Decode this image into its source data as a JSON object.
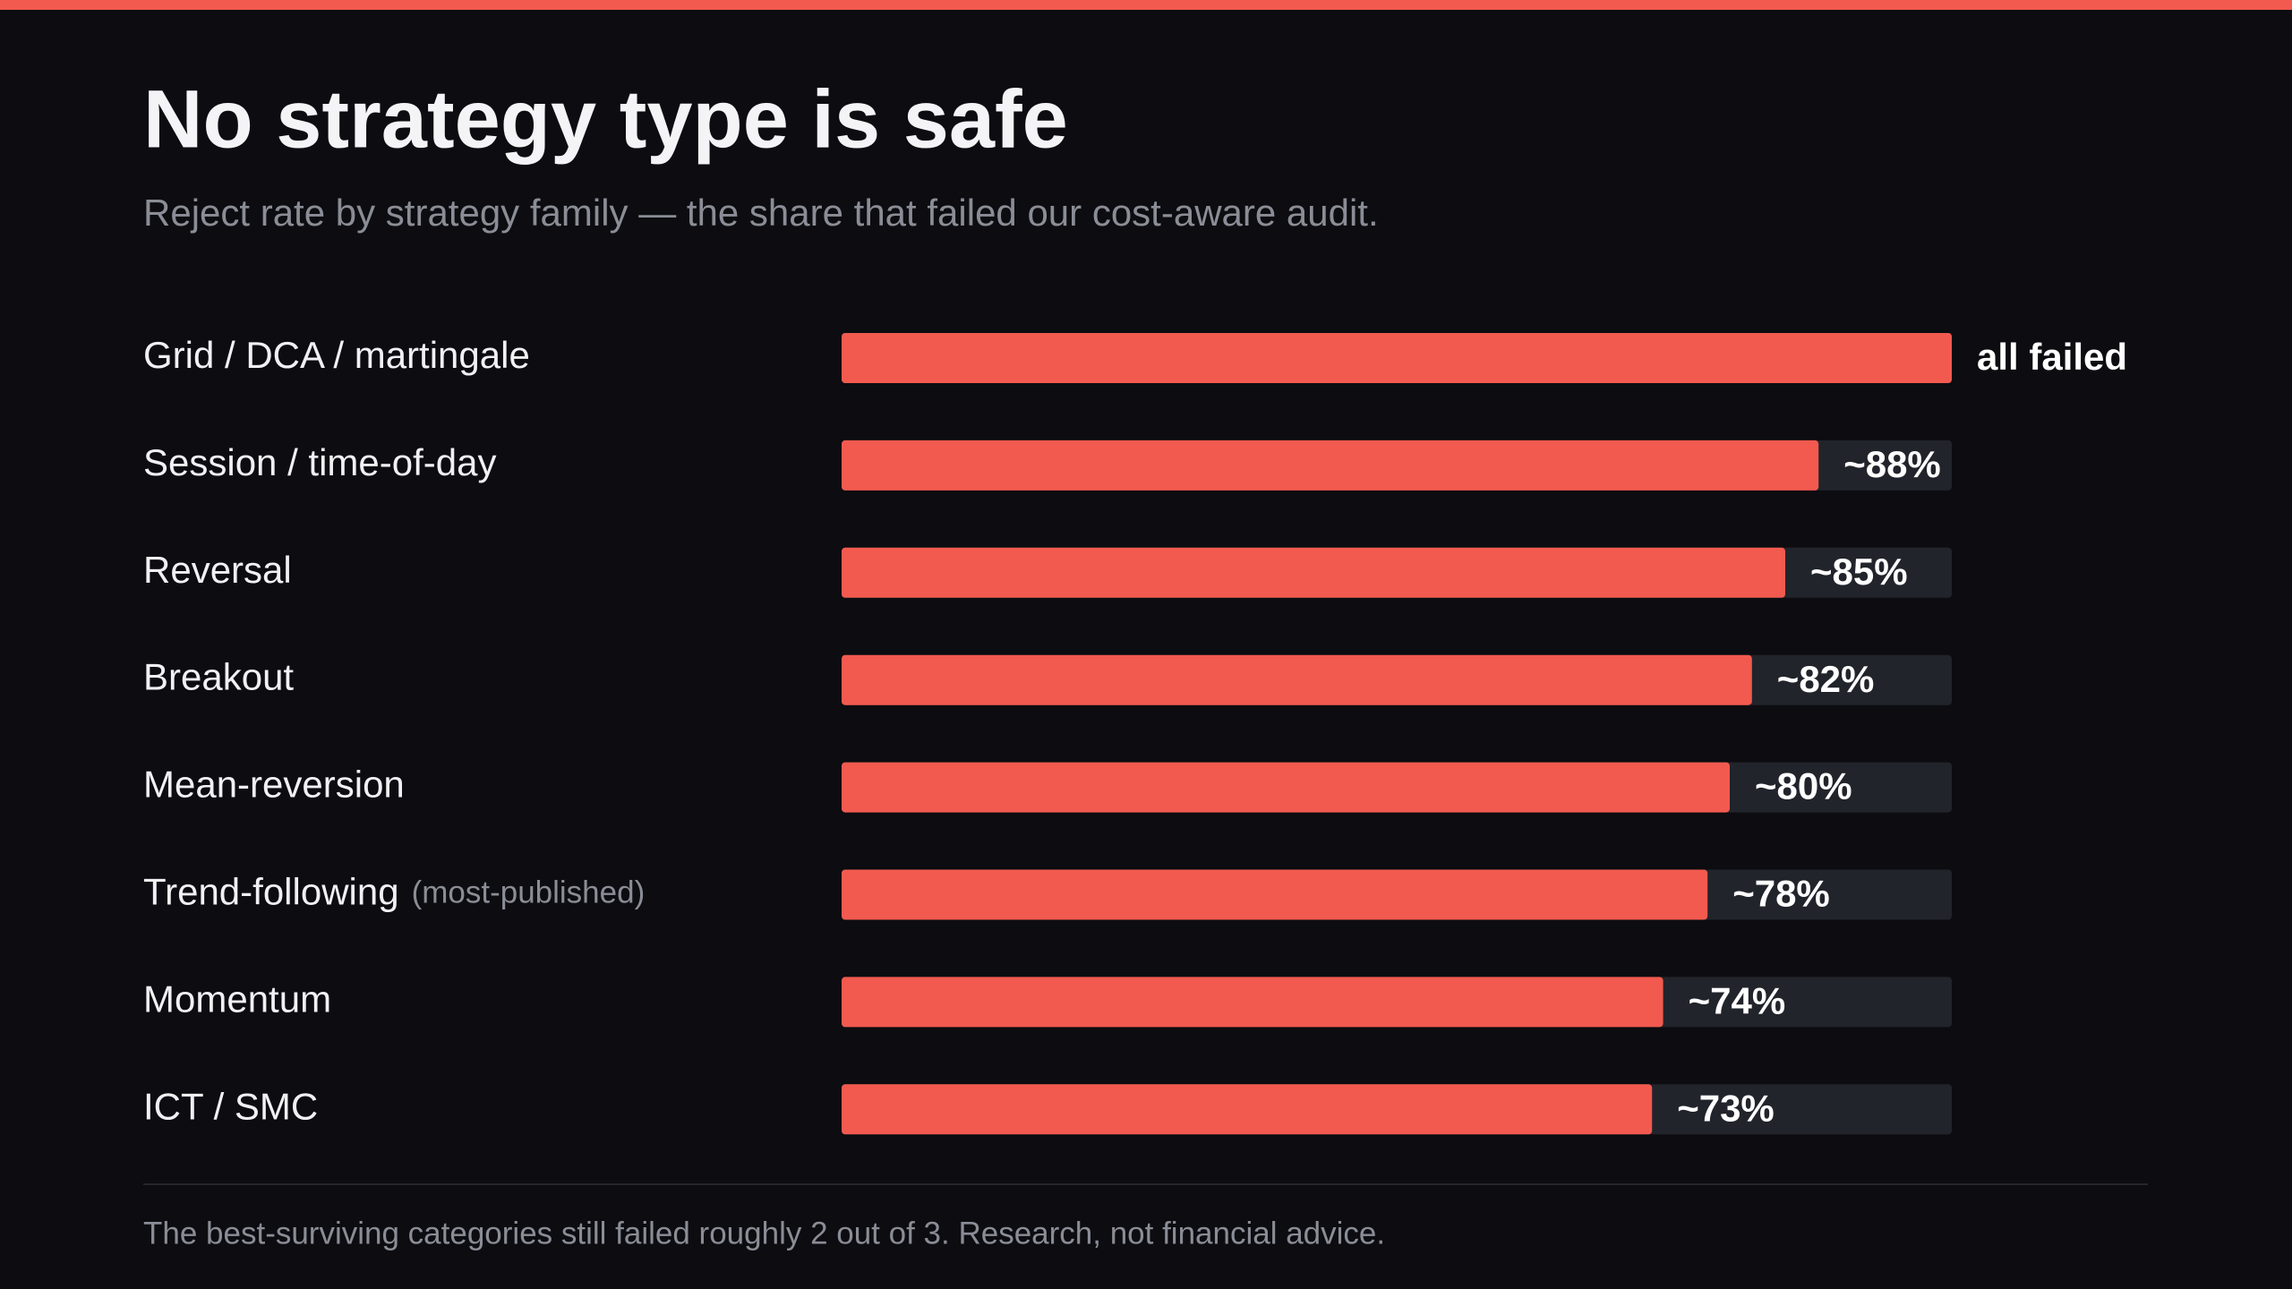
{
  "chart_data": {
    "type": "bar",
    "orientation": "horizontal",
    "title": "No strategy type is safe",
    "subtitle": "Reject rate by strategy family — the share that failed our cost-aware audit.",
    "categories": [
      "Grid / DCA / martingale",
      "Session / time-of-day",
      "Reversal",
      "Breakout",
      "Mean-reversion",
      "Trend-following",
      "Momentum",
      "ICT / SMC"
    ],
    "category_notes": [
      null,
      null,
      null,
      null,
      null,
      "(most-published)",
      null,
      null
    ],
    "values": [
      100,
      88,
      85,
      82,
      80,
      78,
      74,
      73
    ],
    "value_labels": [
      "all failed",
      "~88%",
      "~85%",
      "~82%",
      "~80%",
      "~78%",
      "~74%",
      "~73%"
    ],
    "xlim": [
      0,
      100
    ],
    "color": "#f25a4f",
    "track_color": "#22242b",
    "footnote": "The best-surviving categories still failed roughly 2 out of 3. Research, not financial advice."
  }
}
